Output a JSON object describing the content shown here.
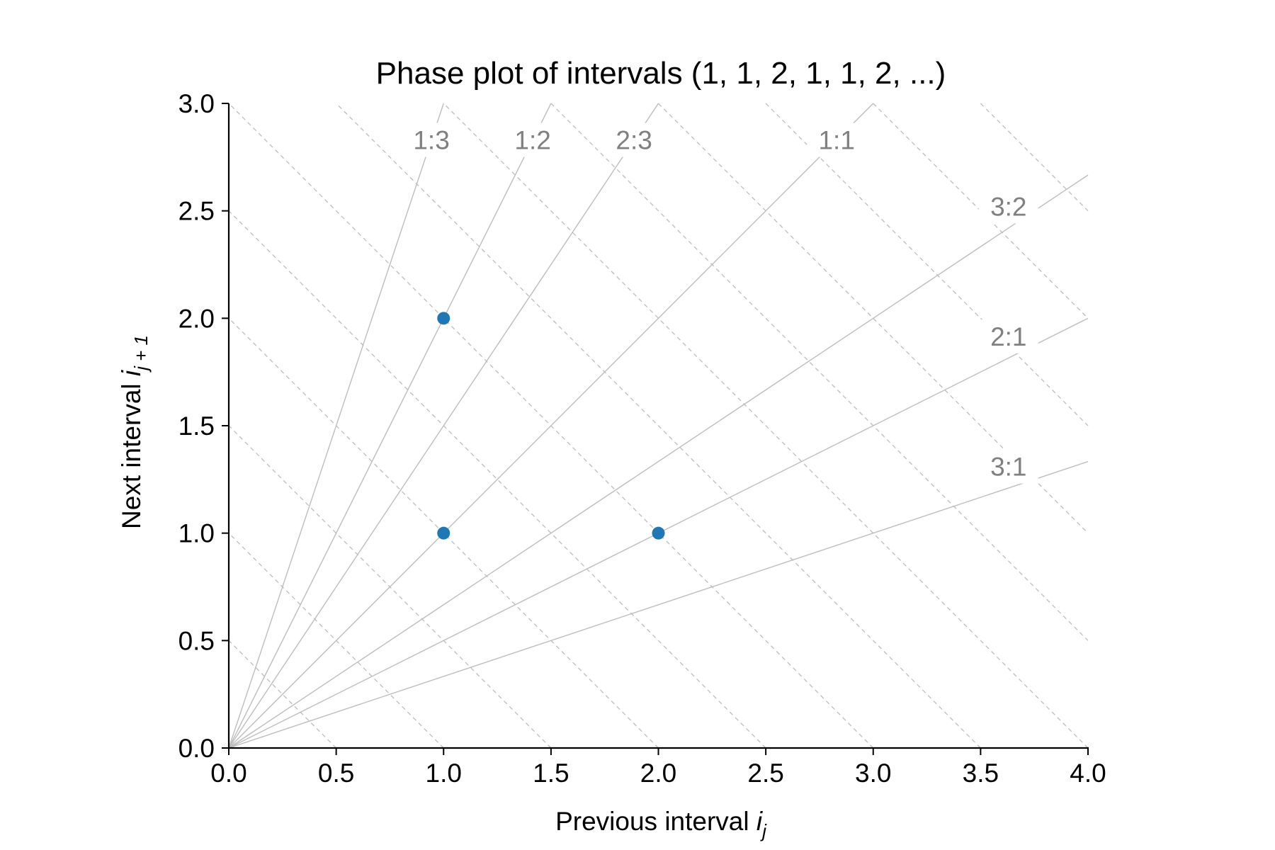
{
  "chart_data": {
    "type": "scatter",
    "title": "Phase plot of intervals (1, 1, 2, 1, 1, 2, ...)",
    "xlabel": {
      "text": "Previous interval ",
      "var": "i",
      "sub": "j"
    },
    "ylabel": {
      "text": "Next interval ",
      "var": "i",
      "sub": "j + 1"
    },
    "xlim": [
      0,
      4
    ],
    "ylim": [
      0,
      3
    ],
    "xticks": [
      0,
      0.5,
      1,
      1.5,
      2,
      2.5,
      3,
      3.5,
      4
    ],
    "xtick_labels": [
      "0.0",
      "0.5",
      "1.0",
      "1.5",
      "2.0",
      "2.5",
      "3.0",
      "3.5",
      "4.0"
    ],
    "yticks": [
      0,
      0.5,
      1,
      1.5,
      2,
      2.5,
      3
    ],
    "ytick_labels": [
      "0.0",
      "0.5",
      "1.0",
      "1.5",
      "2.0",
      "2.5",
      "3.0"
    ],
    "points": [
      {
        "x": 1,
        "y": 2
      },
      {
        "x": 1,
        "y": 1
      },
      {
        "x": 2,
        "y": 1
      }
    ],
    "point_color": "#1f77b4",
    "ratio_lines": [
      {
        "label": "1:3",
        "a": 1,
        "b": 3
      },
      {
        "label": "1:2",
        "a": 1,
        "b": 2
      },
      {
        "label": "2:3",
        "a": 2,
        "b": 3
      },
      {
        "label": "1:1",
        "a": 1,
        "b": 1
      },
      {
        "label": "3:2",
        "a": 3,
        "b": 2
      },
      {
        "label": "2:1",
        "a": 2,
        "b": 1
      },
      {
        "label": "3:1",
        "a": 3,
        "b": 1
      }
    ],
    "sum_lines": [
      0.5,
      1,
      1.5,
      2,
      2.5,
      3,
      3.5,
      4,
      4.5,
      5,
      5.5,
      6,
      6.5,
      7
    ],
    "guide_color": "#bdbdbd",
    "grid": false
  }
}
